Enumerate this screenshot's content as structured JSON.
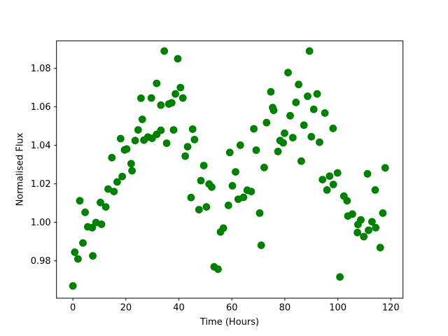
{
  "figure": {
    "background_color": "#ffffff",
    "frame_color": "#000000",
    "text_color": "#000000"
  },
  "chart_data": {
    "type": "scatter",
    "title": "",
    "xlabel": "Time (Hours)",
    "ylabel": "Normalised Flux",
    "marker_color": "#008000",
    "marker_radius_px": 5.4,
    "xlim": [
      -6.2,
      124.6
    ],
    "ylim": [
      0.9606,
      1.0943
    ],
    "xticks": [
      0,
      20,
      40,
      60,
      80,
      100,
      120
    ],
    "xtick_labels": [
      "0",
      "20",
      "40",
      "60",
      "80",
      "100",
      "120"
    ],
    "yticks": [
      0.98,
      1.0,
      1.02,
      1.04,
      1.06,
      1.08
    ],
    "ytick_labels": [
      "0.98",
      "1.00",
      "1.02",
      "1.04",
      "1.06",
      "1.08"
    ],
    "grid": false,
    "legend": null,
    "points": [
      [
        0.0,
        0.967
      ],
      [
        0.7,
        0.9845
      ],
      [
        1.9,
        0.981
      ],
      [
        2.6,
        1.0112
      ],
      [
        3.8,
        0.9893
      ],
      [
        4.6,
        1.0052
      ],
      [
        5.6,
        0.9977
      ],
      [
        7.3,
        0.9972
      ],
      [
        7.5,
        0.9826
      ],
      [
        8.7,
        0.9999
      ],
      [
        10.4,
        1.0103
      ],
      [
        10.8,
        0.999
      ],
      [
        12.4,
        1.008
      ],
      [
        13.3,
        1.0173
      ],
      [
        14.7,
        1.0336
      ],
      [
        15.5,
        1.016
      ],
      [
        16.7,
        1.021
      ],
      [
        18.0,
        1.0435
      ],
      [
        18.6,
        1.0238
      ],
      [
        19.5,
        1.0376
      ],
      [
        20.3,
        1.0381
      ],
      [
        22.0,
        1.0305
      ],
      [
        22.3,
        1.0268
      ],
      [
        23.5,
        1.0425
      ],
      [
        24.6,
        1.048
      ],
      [
        25.7,
        1.0645
      ],
      [
        26.2,
        1.0535
      ],
      [
        26.8,
        1.0427
      ],
      [
        28.3,
        1.0443
      ],
      [
        29.6,
        1.0646
      ],
      [
        29.9,
        1.0437
      ],
      [
        31.6,
        1.0457
      ],
      [
        31.6,
        1.0722
      ],
      [
        33.2,
        1.0478
      ],
      [
        33.2,
        1.0609
      ],
      [
        34.5,
        1.089
      ],
      [
        35.4,
        1.0411
      ],
      [
        36.2,
        1.0615
      ],
      [
        37.3,
        1.0621
      ],
      [
        38.0,
        1.048
      ],
      [
        38.7,
        1.0667
      ],
      [
        39.6,
        1.085
      ],
      [
        40.6,
        1.07
      ],
      [
        41.5,
        1.0646
      ],
      [
        42.4,
        1.0344
      ],
      [
        43.3,
        1.0393
      ],
      [
        44.6,
        1.0129
      ],
      [
        45.2,
        1.0484
      ],
      [
        45.9,
        1.043
      ],
      [
        47.6,
        1.0066
      ],
      [
        48.3,
        1.0217
      ],
      [
        49.4,
        1.0295
      ],
      [
        50.4,
        1.008
      ],
      [
        51.4,
        1.0199
      ],
      [
        52.4,
        1.0183
      ],
      [
        53.3,
        0.9769
      ],
      [
        54.8,
        0.9757
      ],
      [
        55.7,
        0.995
      ],
      [
        56.8,
        0.997
      ],
      [
        58.7,
        1.0088
      ],
      [
        59.2,
        1.0363
      ],
      [
        60.2,
        1.019
      ],
      [
        61.4,
        1.0262
      ],
      [
        62.4,
        1.012
      ],
      [
        63.2,
        1.0401
      ],
      [
        64.4,
        1.013
      ],
      [
        65.8,
        1.0167
      ],
      [
        67.3,
        1.016
      ],
      [
        68.3,
        1.0486
      ],
      [
        69.2,
        1.0375
      ],
      [
        70.5,
        1.0048
      ],
      [
        71.1,
        0.9881
      ],
      [
        72.2,
        1.0285
      ],
      [
        73.1,
        1.0518
      ],
      [
        74.7,
        1.0678
      ],
      [
        75.4,
        1.0596
      ],
      [
        75.8,
        1.0582
      ],
      [
        77.4,
        1.0368
      ],
      [
        78.2,
        1.0425
      ],
      [
        79.4,
        1.0413
      ],
      [
        79.9,
        1.0463
      ],
      [
        81.2,
        1.0778
      ],
      [
        82.0,
        1.0554
      ],
      [
        83.0,
        1.044
      ],
      [
        84.2,
        1.0623
      ],
      [
        85.2,
        1.0716
      ],
      [
        86.2,
        1.0318
      ],
      [
        87.2,
        1.0505
      ],
      [
        88.6,
        1.0655
      ],
      [
        89.3,
        1.089
      ],
      [
        90.0,
        1.0445
      ],
      [
        90.9,
        1.0587
      ],
      [
        92.2,
        1.0667
      ],
      [
        93.1,
        1.0416
      ],
      [
        94.2,
        1.0222
      ],
      [
        95.1,
        1.0568
      ],
      [
        95.9,
        1.0168
      ],
      [
        96.9,
        1.024
      ],
      [
        98.2,
        1.0488
      ],
      [
        98.3,
        1.0197
      ],
      [
        99.9,
        1.0257
      ],
      [
        100.8,
        0.9716
      ],
      [
        102.3,
        1.0136
      ],
      [
        103.5,
        1.0112
      ],
      [
        103.8,
        1.0033
      ],
      [
        105.5,
        1.0043
      ],
      [
        107.4,
        0.9947
      ],
      [
        107.6,
        0.9989
      ],
      [
        108.7,
        1.0013
      ],
      [
        109.8,
        0.9926
      ],
      [
        111.2,
        1.0252
      ],
      [
        111.6,
        0.9959
      ],
      [
        112.9,
        1.0003
      ],
      [
        114.1,
        1.0168
      ],
      [
        114.3,
        0.9972
      ],
      [
        116.0,
        0.9869
      ],
      [
        117.0,
        1.0048
      ],
      [
        117.9,
        1.0283
      ]
    ]
  }
}
